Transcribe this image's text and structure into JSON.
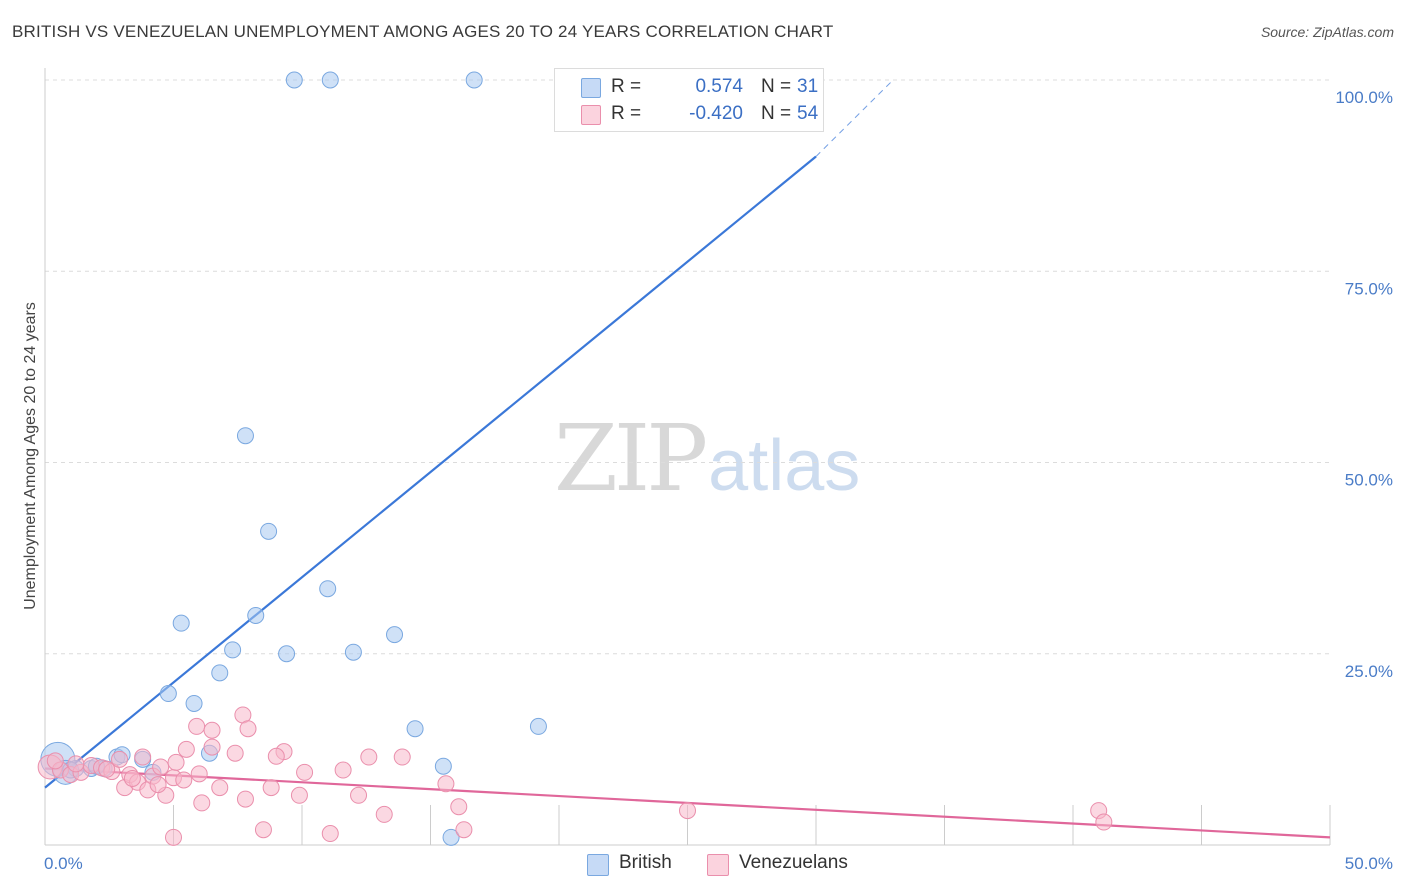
{
  "title": "BRITISH VS VENEZUELAN UNEMPLOYMENT AMONG AGES 20 TO 24 YEARS CORRELATION CHART",
  "source": "Source: ZipAtlas.com",
  "watermark": {
    "zip": "ZIP",
    "atlas": "atlas"
  },
  "legend": {
    "rows": [
      {
        "r_label": "R =",
        "r_value": "0.574",
        "n_label": "N =",
        "n_value": "31",
        "color": "#a8c8f0"
      },
      {
        "r_label": "R =",
        "r_value": "-0.420",
        "n_label": "N =",
        "n_value": "54",
        "color": "#f7b8cb"
      }
    ],
    "bottom": [
      {
        "label": "British",
        "color": "#a8c8f0"
      },
      {
        "label": "Venezuelans",
        "color": "#f7b8cb"
      }
    ]
  },
  "chart_data": {
    "type": "scatter",
    "title": "BRITISH VS VENEZUELAN UNEMPLOYMENT AMONG AGES 20 TO 24 YEARS CORRELATION CHART",
    "xlabel": "",
    "ylabel": "Unemployment Among Ages 20 to 24 years",
    "xlim": [
      0,
      50
    ],
    "ylim": [
      0,
      105
    ],
    "x_tick_labels": [
      "0.0%",
      "50.0%"
    ],
    "y_tick_labels": [
      "25.0%",
      "50.0%",
      "75.0%",
      "100.0%"
    ],
    "y_ticks": [
      25,
      50,
      75,
      100
    ],
    "grid": true,
    "series": [
      {
        "name": "British",
        "color": "#a8c8f0",
        "stroke": "#7aa8e0",
        "trend_color": "#3b78d8",
        "trend": {
          "x0": 0,
          "y0": 7.5,
          "x1": 30,
          "y1": 90,
          "dash_x1": 33,
          "dash_y1": 100
        },
        "points": [
          [
            0.5,
            11.2,
            3
          ],
          [
            0.8,
            9.5,
            2
          ],
          [
            1.2,
            10.0,
            1
          ],
          [
            1.8,
            10.0,
            1
          ],
          [
            2.3,
            10.0,
            1
          ],
          [
            2.8,
            11.5,
            1
          ],
          [
            3.0,
            11.8,
            1
          ],
          [
            3.8,
            11.2,
            1
          ],
          [
            4.2,
            9.5,
            1
          ],
          [
            4.8,
            19.8,
            1
          ],
          [
            5.3,
            29.0,
            1
          ],
          [
            5.8,
            18.5,
            1
          ],
          [
            6.4,
            12.0,
            1
          ],
          [
            6.8,
            22.5,
            1
          ],
          [
            7.3,
            25.5,
            1
          ],
          [
            7.8,
            53.5,
            1
          ],
          [
            8.7,
            41.0,
            1
          ],
          [
            8.2,
            30.0,
            1
          ],
          [
            9.4,
            25.0,
            1
          ],
          [
            11.0,
            33.5,
            1
          ],
          [
            12.0,
            25.2,
            1
          ],
          [
            13.6,
            27.5,
            1
          ],
          [
            14.4,
            15.2,
            1
          ],
          [
            15.5,
            10.3,
            1
          ],
          [
            15.8,
            1.0,
            1
          ],
          [
            19.2,
            15.5,
            1
          ],
          [
            9.7,
            100.0,
            1
          ],
          [
            11.1,
            100.0,
            1
          ],
          [
            16.7,
            100.0,
            1
          ],
          [
            1.0,
            9.8,
            1
          ],
          [
            2.0,
            10.3,
            1
          ]
        ]
      },
      {
        "name": "Venezuelans",
        "color": "#f7b8cb",
        "stroke": "#ea8fac",
        "trend_color": "#e0679a",
        "trend": {
          "x0": 0,
          "y0": 10.0,
          "x1": 50,
          "y1": 1.0
        },
        "points": [
          [
            0.2,
            10.2,
            2
          ],
          [
            0.6,
            9.8,
            1
          ],
          [
            1.0,
            9.2,
            1
          ],
          [
            1.4,
            9.5,
            1
          ],
          [
            1.8,
            10.4,
            1
          ],
          [
            2.2,
            10.1,
            1
          ],
          [
            2.6,
            9.6,
            1
          ],
          [
            2.9,
            11.2,
            1
          ],
          [
            3.1,
            7.5,
            1
          ],
          [
            3.3,
            9.2,
            1
          ],
          [
            3.6,
            8.2,
            1
          ],
          [
            3.8,
            11.5,
            1
          ],
          [
            4.0,
            7.2,
            1
          ],
          [
            4.2,
            9.0,
            1
          ],
          [
            4.5,
            10.2,
            1
          ],
          [
            4.7,
            6.5,
            1
          ],
          [
            5.0,
            8.8,
            1
          ],
          [
            5.1,
            10.8,
            1
          ],
          [
            5.4,
            8.5,
            1
          ],
          [
            5.5,
            12.5,
            1
          ],
          [
            5.9,
            15.5,
            1
          ],
          [
            6.1,
            5.5,
            1
          ],
          [
            6.5,
            12.8,
            1
          ],
          [
            6.5,
            15.0,
            1
          ],
          [
            6.8,
            7.5,
            1
          ],
          [
            7.4,
            12.0,
            1
          ],
          [
            7.7,
            17.0,
            1
          ],
          [
            7.8,
            6.0,
            1
          ],
          [
            7.9,
            15.2,
            1
          ],
          [
            8.5,
            2.0,
            1
          ],
          [
            8.8,
            7.5,
            1
          ],
          [
            9.3,
            12.2,
            1
          ],
          [
            9.9,
            6.5,
            1
          ],
          [
            10.1,
            9.5,
            1
          ],
          [
            11.1,
            1.5,
            1
          ],
          [
            11.6,
            9.8,
            1
          ],
          [
            12.2,
            6.5,
            1
          ],
          [
            12.6,
            11.5,
            1
          ],
          [
            13.2,
            4.0,
            1
          ],
          [
            13.9,
            11.5,
            1
          ],
          [
            15.6,
            8.0,
            1
          ],
          [
            16.1,
            5.0,
            1
          ],
          [
            16.3,
            2.0,
            1
          ],
          [
            25.0,
            4.5,
            1
          ],
          [
            41.0,
            4.5,
            1
          ],
          [
            41.2,
            3.0,
            1
          ],
          [
            5.0,
            1.0,
            1
          ],
          [
            0.4,
            11.0,
            1
          ],
          [
            1.2,
            10.6,
            1
          ],
          [
            2.4,
            9.9,
            1
          ],
          [
            3.4,
            8.7,
            1
          ],
          [
            4.4,
            7.9,
            1
          ],
          [
            6.0,
            9.3,
            1
          ],
          [
            9.0,
            11.6,
            1
          ]
        ]
      }
    ]
  }
}
